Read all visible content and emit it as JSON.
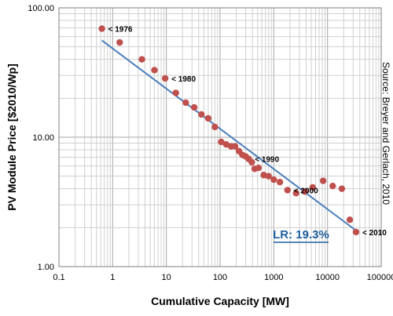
{
  "chart_data": {
    "type": "scatter",
    "xlabel": "Cumulative Capacity [MW]",
    "ylabel": "PV Module Price [$2010/Wp]",
    "x_scale": "log",
    "y_scale": "log",
    "xlim": [
      0.1,
      100000
    ],
    "ylim": [
      1,
      100
    ],
    "x_ticks": [
      "0.1",
      "1",
      "10",
      "100",
      "1000",
      "10000",
      "100000"
    ],
    "y_ticks": [
      "1.00",
      "10.00",
      "100.00"
    ],
    "grid": true,
    "source": "Source: Breyer and Gerlach, 2010",
    "points_color": "#c0504d",
    "trend_color": "#4a7ebb",
    "points": [
      {
        "x": 0.63,
        "y": 69
      },
      {
        "x": 1.35,
        "y": 54
      },
      {
        "x": 3.5,
        "y": 40
      },
      {
        "x": 6.0,
        "y": 33
      },
      {
        "x": 9.5,
        "y": 28.5
      },
      {
        "x": 15,
        "y": 22
      },
      {
        "x": 23,
        "y": 18.5
      },
      {
        "x": 33,
        "y": 17
      },
      {
        "x": 45,
        "y": 15
      },
      {
        "x": 60,
        "y": 14
      },
      {
        "x": 80,
        "y": 12
      },
      {
        "x": 105,
        "y": 9.2
      },
      {
        "x": 130,
        "y": 8.8
      },
      {
        "x": 160,
        "y": 8.5
      },
      {
        "x": 190,
        "y": 8.5
      },
      {
        "x": 225,
        "y": 7.8
      },
      {
        "x": 260,
        "y": 7.3
      },
      {
        "x": 300,
        "y": 7.1
      },
      {
        "x": 340,
        "y": 6.8
      },
      {
        "x": 390,
        "y": 6.4
      },
      {
        "x": 440,
        "y": 5.7
      },
      {
        "x": 520,
        "y": 5.8
      },
      {
        "x": 650,
        "y": 5.1
      },
      {
        "x": 800,
        "y": 5.0
      },
      {
        "x": 1000,
        "y": 4.7
      },
      {
        "x": 1300,
        "y": 4.5
      },
      {
        "x": 1800,
        "y": 3.9
      },
      {
        "x": 2600,
        "y": 3.7
      },
      {
        "x": 3800,
        "y": 3.8
      },
      {
        "x": 5300,
        "y": 4.1
      },
      {
        "x": 8300,
        "y": 4.6
      },
      {
        "x": 12500,
        "y": 4.2
      },
      {
        "x": 18500,
        "y": 4.0
      },
      {
        "x": 26000,
        "y": 2.3
      },
      {
        "x": 34000,
        "y": 1.85
      }
    ],
    "trend_line": [
      {
        "x": 0.63,
        "y": 56
      },
      {
        "x": 34000,
        "y": 1.9
      }
    ],
    "annotations": [
      {
        "text": "< 1976",
        "x": 0.63,
        "y": 69
      },
      {
        "text": "< 1980",
        "x": 9.5,
        "y": 28.5
      },
      {
        "text": "< 1990",
        "x": 340,
        "y": 6.8
      },
      {
        "text": "< 2000",
        "x": 1800,
        "y": 3.9
      },
      {
        "text": "< 2010",
        "x": 34000,
        "y": 1.85
      }
    ],
    "learning_rate_label": "LR: 19.3%"
  }
}
